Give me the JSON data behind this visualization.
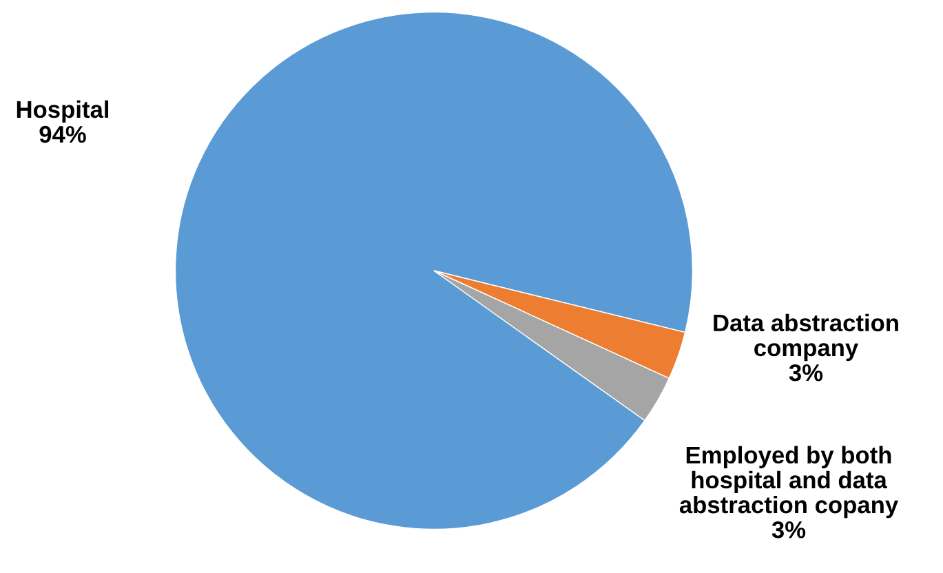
{
  "chart_data": {
    "type": "pie",
    "categories": [
      "Hospital",
      "Data abstraction\ncompany",
      "Employed by both\nhospital and data\nabstraction copany"
    ],
    "values": [
      94,
      3,
      3
    ],
    "value_labels": [
      "94%",
      "3%",
      "3%"
    ],
    "colors": [
      "#5b9bd5",
      "#ed7d31",
      "#a5a5a5"
    ],
    "legend": false
  }
}
